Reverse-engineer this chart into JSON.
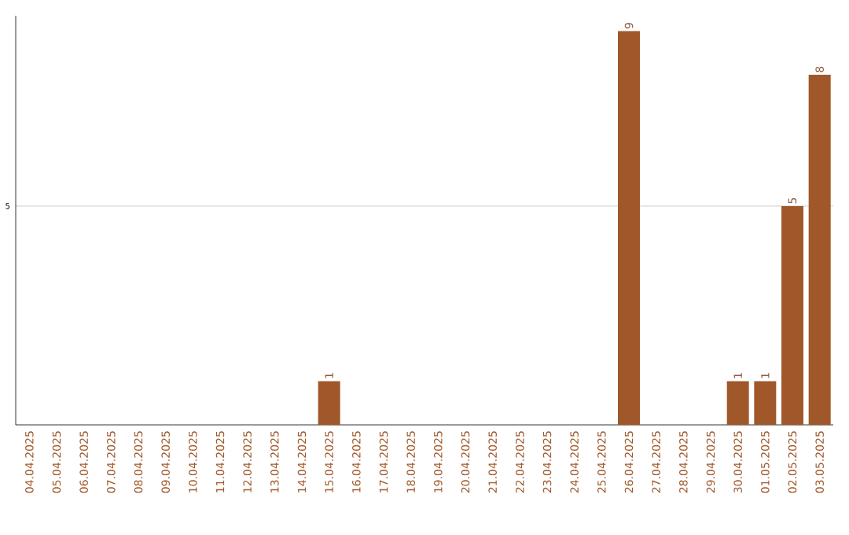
{
  "chart_data": {
    "type": "bar",
    "categories": [
      "04.04.2025",
      "05.04.2025",
      "06.04.2025",
      "07.04.2025",
      "08.04.2025",
      "09.04.2025",
      "10.04.2025",
      "11.04.2025",
      "12.04.2025",
      "13.04.2025",
      "14.04.2025",
      "15.04.2025",
      "16.04.2025",
      "17.04.2025",
      "18.04.2025",
      "19.04.2025",
      "20.04.2025",
      "21.04.2025",
      "22.04.2025",
      "23.04.2025",
      "24.04.2025",
      "25.04.2025",
      "26.04.2025",
      "27.04.2025",
      "28.04.2025",
      "29.04.2025",
      "30.04.2025",
      "01.05.2025",
      "02.05.2025",
      "03.05.2025"
    ],
    "values": [
      0,
      0,
      0,
      0,
      0,
      0,
      0,
      0,
      0,
      0,
      0,
      1,
      0,
      0,
      0,
      0,
      0,
      0,
      0,
      0,
      0,
      0,
      9,
      0,
      0,
      0,
      1,
      1,
      5,
      8
    ],
    "value_labels": [
      null,
      null,
      null,
      null,
      null,
      null,
      null,
      null,
      null,
      null,
      null,
      "1",
      null,
      null,
      null,
      null,
      null,
      null,
      null,
      null,
      null,
      null,
      "9",
      null,
      null,
      null,
      "1",
      "1",
      "5",
      "8"
    ],
    "color": "#a0582a",
    "ylim": [
      0,
      9.35
    ],
    "yticks": [
      5
    ],
    "grid": "y"
  }
}
